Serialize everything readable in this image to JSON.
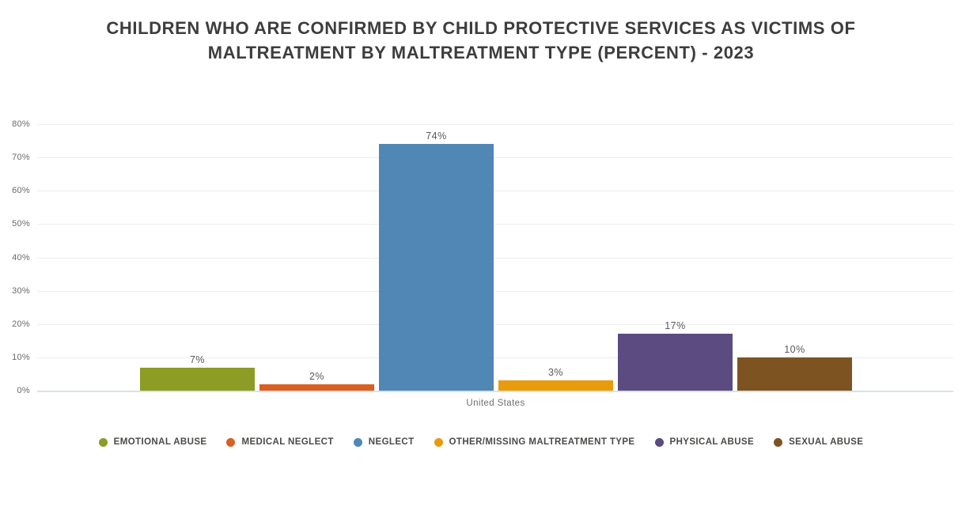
{
  "title": "CHILDREN WHO ARE CONFIRMED BY CHILD PROTECTIVE SERVICES AS VICTIMS OF MALTREATMENT BY MALTREATMENT TYPE (PERCENT) - 2023",
  "chart_data": {
    "type": "bar",
    "title": "CHILDREN WHO ARE CONFIRMED BY CHILD PROTECTIVE SERVICES AS VICTIMS OF MALTREATMENT BY MALTREATMENT TYPE (PERCENT) - 2023",
    "categories": [
      "United States"
    ],
    "series": [
      {
        "name": "EMOTIONAL ABUSE",
        "values": [
          7
        ],
        "value_label": "7%",
        "color": "#8c9c24"
      },
      {
        "name": "MEDICAL NEGLECT",
        "values": [
          2
        ],
        "value_label": "2%",
        "color": "#d95f22"
      },
      {
        "name": "NEGLECT",
        "values": [
          74
        ],
        "value_label": "74%",
        "color": "#5087b5"
      },
      {
        "name": "OTHER/MISSING MALTREATMENT TYPE",
        "values": [
          3
        ],
        "value_label": "3%",
        "color": "#e89c0c"
      },
      {
        "name": "PHYSICAL ABUSE",
        "values": [
          17
        ],
        "value_label": "17%",
        "color": "#5c4b81"
      },
      {
        "name": "SEXUAL ABUSE",
        "values": [
          10
        ],
        "value_label": "10%",
        "color": "#7d5421"
      }
    ],
    "xlabel": "United States",
    "ylabel": "",
    "ylim": [
      0,
      80
    ],
    "yticks": [
      "0%",
      "10%",
      "20%",
      "30%",
      "40%",
      "50%",
      "60%",
      "70%",
      "80%"
    ],
    "grid": true,
    "legend_position": "bottom",
    "colors": {
      "title_text": "#3d3d3d",
      "axis_label_text": "#696969",
      "value_label_text": "#595959",
      "gridline": "#ededed",
      "baseline": "#d9e2e7",
      "background": "#ffffff"
    }
  }
}
